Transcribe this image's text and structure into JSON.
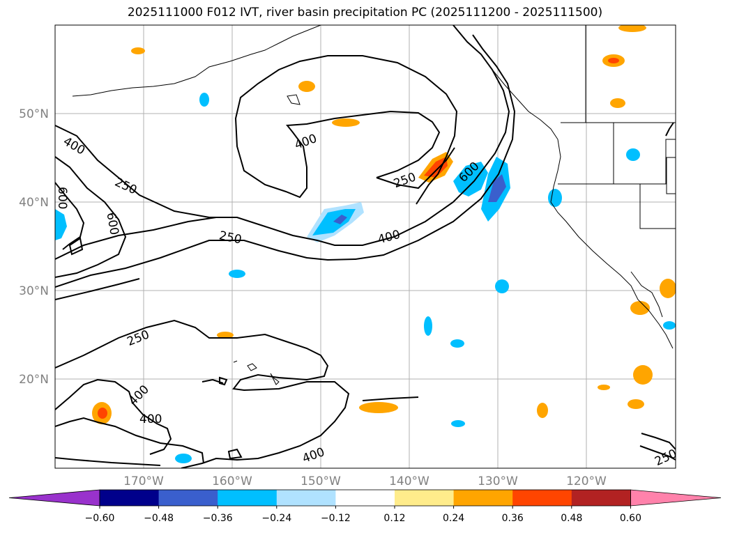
{
  "title": "2025111000 F012 IVT, river basin precipitation PC (2025111200 - 2025111500)",
  "lon_labels": [
    "170°W",
    "160°W",
    "150°W",
    "140°W",
    "130°W",
    "120°W"
  ],
  "lat_labels": [
    "50°N",
    "40°N",
    "30°N",
    "20°N"
  ],
  "contour_labels": [
    "400",
    "600",
    "250",
    "600",
    "250",
    "400",
    "400",
    "250",
    "600",
    "400",
    "250",
    "400",
    "400",
    "400",
    "250"
  ],
  "colorbar": {
    "ticks": [
      "−0.60",
      "−0.48",
      "−0.36",
      "−0.24",
      "−0.12",
      "0.12",
      "0.24",
      "0.36",
      "0.48",
      "0.60"
    ],
    "colors": [
      "#9932cc",
      "#00008b",
      "#3a5fcd",
      "#00bfff",
      "#b0e2ff",
      "#ffffff",
      "#ffec8b",
      "#ffa500",
      "#ff4500",
      "#b22222",
      "#ff82ab"
    ]
  }
}
